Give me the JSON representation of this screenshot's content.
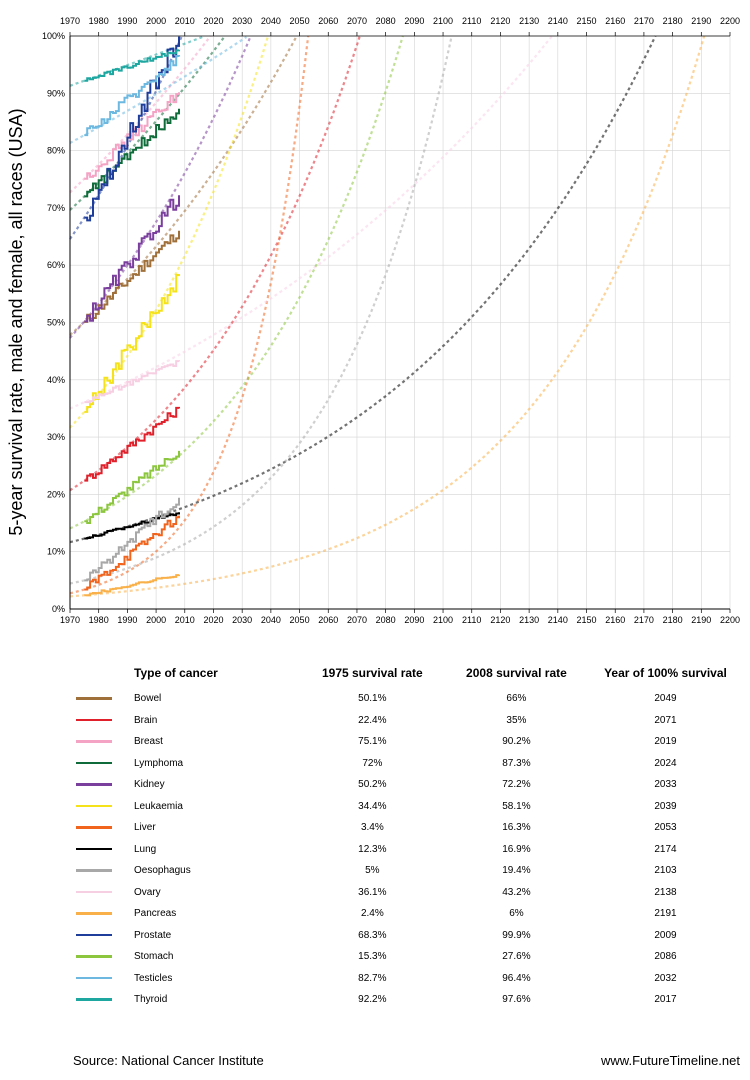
{
  "chart_data": {
    "type": "line",
    "title": "",
    "ylabel": "5-year survival rate, male and female, all races (USA)",
    "xlabel": "",
    "xlim": [
      1970,
      2200
    ],
    "ylim": [
      0,
      100
    ],
    "x_ticks": [
      "1970",
      "1980",
      "1990",
      "2000",
      "2010",
      "2020",
      "2030",
      "2040",
      "2050",
      "2060",
      "2070",
      "2080",
      "2090",
      "2100",
      "2110",
      "2120",
      "2130",
      "2140",
      "2150",
      "2160",
      "2170",
      "2180",
      "2190",
      "2200"
    ],
    "y_ticks": [
      "0%",
      "10%",
      "20%",
      "30%",
      "40%",
      "50%",
      "60%",
      "70%",
      "80%",
      "90%",
      "100%"
    ],
    "grid": true,
    "series": [
      {
        "name": "Bowel",
        "color": "#a0703a",
        "start_year": 1975,
        "end_year": 2008,
        "start_value": 50.1,
        "end_value": 66,
        "year_100": 2049
      },
      {
        "name": "Brain",
        "color": "#e0202a",
        "start_year": 1975,
        "end_year": 2008,
        "start_value": 22.4,
        "end_value": 35,
        "year_100": 2071
      },
      {
        "name": "Breast",
        "color": "#f4a3c4",
        "start_year": 1975,
        "end_year": 2008,
        "start_value": 75.1,
        "end_value": 90.2,
        "year_100": 2019
      },
      {
        "name": "Lymphoma",
        "color": "#0f6b3a",
        "start_year": 1975,
        "end_year": 2008,
        "start_value": 72,
        "end_value": 87.3,
        "year_100": 2024
      },
      {
        "name": "Kidney",
        "color": "#7a3e9d",
        "start_year": 1975,
        "end_year": 2008,
        "start_value": 50.2,
        "end_value": 72.2,
        "year_100": 2033
      },
      {
        "name": "Leukaemia",
        "color": "#f5e21b",
        "start_year": 1975,
        "end_year": 2008,
        "start_value": 34.4,
        "end_value": 58.1,
        "year_100": 2039
      },
      {
        "name": "Liver",
        "color": "#f0641e",
        "start_year": 1975,
        "end_year": 2008,
        "start_value": 3.4,
        "end_value": 16.3,
        "year_100": 2053
      },
      {
        "name": "Lung",
        "color": "#000000",
        "start_year": 1975,
        "end_year": 2008,
        "start_value": 12.3,
        "end_value": 16.9,
        "year_100": 2174
      },
      {
        "name": "Oesophagus",
        "color": "#a8a8a8",
        "start_year": 1975,
        "end_year": 2008,
        "start_value": 5,
        "end_value": 19.4,
        "year_100": 2103
      },
      {
        "name": "Ovary",
        "color": "#f7cfe3",
        "start_year": 1975,
        "end_year": 2008,
        "start_value": 36.1,
        "end_value": 43.2,
        "year_100": 2138
      },
      {
        "name": "Pancreas",
        "color": "#f9b049",
        "start_year": 1975,
        "end_year": 2008,
        "start_value": 2.4,
        "end_value": 6,
        "year_100": 2191
      },
      {
        "name": "Prostate",
        "color": "#1f3d9a",
        "start_year": 1975,
        "end_year": 2008,
        "start_value": 68.3,
        "end_value": 99.9,
        "year_100": 2009
      },
      {
        "name": "Stomach",
        "color": "#8cc63f",
        "start_year": 1975,
        "end_year": 2008,
        "start_value": 15.3,
        "end_value": 27.6,
        "year_100": 2086
      },
      {
        "name": "Testicles",
        "color": "#6cb8e0",
        "start_year": 1975,
        "end_year": 2008,
        "start_value": 82.7,
        "end_value": 96.4,
        "year_100": 2032
      },
      {
        "name": "Thyroid",
        "color": "#1ea6a0",
        "start_year": 1975,
        "end_year": 2008,
        "start_value": 92.2,
        "end_value": 97.6,
        "year_100": 2017
      }
    ]
  },
  "table": {
    "headers": [
      "Type of cancer",
      "1975 survival rate",
      "2008 survival rate",
      "Year of 100% survival"
    ],
    "rows": [
      {
        "name": "Bowel",
        "color": "#a0703a",
        "r1975": "50.1%",
        "r2008": "66%",
        "year100": "2049"
      },
      {
        "name": "Brain",
        "color": "#e0202a",
        "r1975": "22.4%",
        "r2008": "35%",
        "year100": "2071"
      },
      {
        "name": "Breast",
        "color": "#f4a3c4",
        "r1975": "75.1%",
        "r2008": "90.2%",
        "year100": "2019"
      },
      {
        "name": "Lymphoma",
        "color": "#0f6b3a",
        "r1975": "72%",
        "r2008": "87.3%",
        "year100": "2024"
      },
      {
        "name": "Kidney",
        "color": "#7a3e9d",
        "r1975": "50.2%",
        "r2008": "72.2%",
        "year100": "2033"
      },
      {
        "name": "Leukaemia",
        "color": "#f5e21b",
        "r1975": "34.4%",
        "r2008": "58.1%",
        "year100": "2039"
      },
      {
        "name": "Liver",
        "color": "#f0641e",
        "r1975": "3.4%",
        "r2008": "16.3%",
        "year100": "2053"
      },
      {
        "name": "Lung",
        "color": "#000000",
        "r1975": "12.3%",
        "r2008": "16.9%",
        "year100": "2174"
      },
      {
        "name": "Oesophagus",
        "color": "#a8a8a8",
        "r1975": "5%",
        "r2008": "19.4%",
        "year100": "2103"
      },
      {
        "name": "Ovary",
        "color": "#f7cfe3",
        "r1975": "36.1%",
        "r2008": "43.2%",
        "year100": "2138"
      },
      {
        "name": "Pancreas",
        "color": "#f9b049",
        "r1975": "2.4%",
        "r2008": "6%",
        "year100": "2191"
      },
      {
        "name": "Prostate",
        "color": "#1f3d9a",
        "r1975": "68.3%",
        "r2008": "99.9%",
        "year100": "2009"
      },
      {
        "name": "Stomach",
        "color": "#8cc63f",
        "r1975": "15.3%",
        "r2008": "27.6%",
        "year100": "2086"
      },
      {
        "name": "Testicles",
        "color": "#6cb8e0",
        "r1975": "82.7%",
        "r2008": "96.4%",
        "year100": "2032"
      },
      {
        "name": "Thyroid",
        "color": "#1ea6a0",
        "r1975": "92.2%",
        "r2008": "97.6%",
        "year100": "2017"
      }
    ]
  },
  "footer": {
    "source": "Source: National Cancer Institute",
    "site": "www.FutureTimeline.net"
  }
}
